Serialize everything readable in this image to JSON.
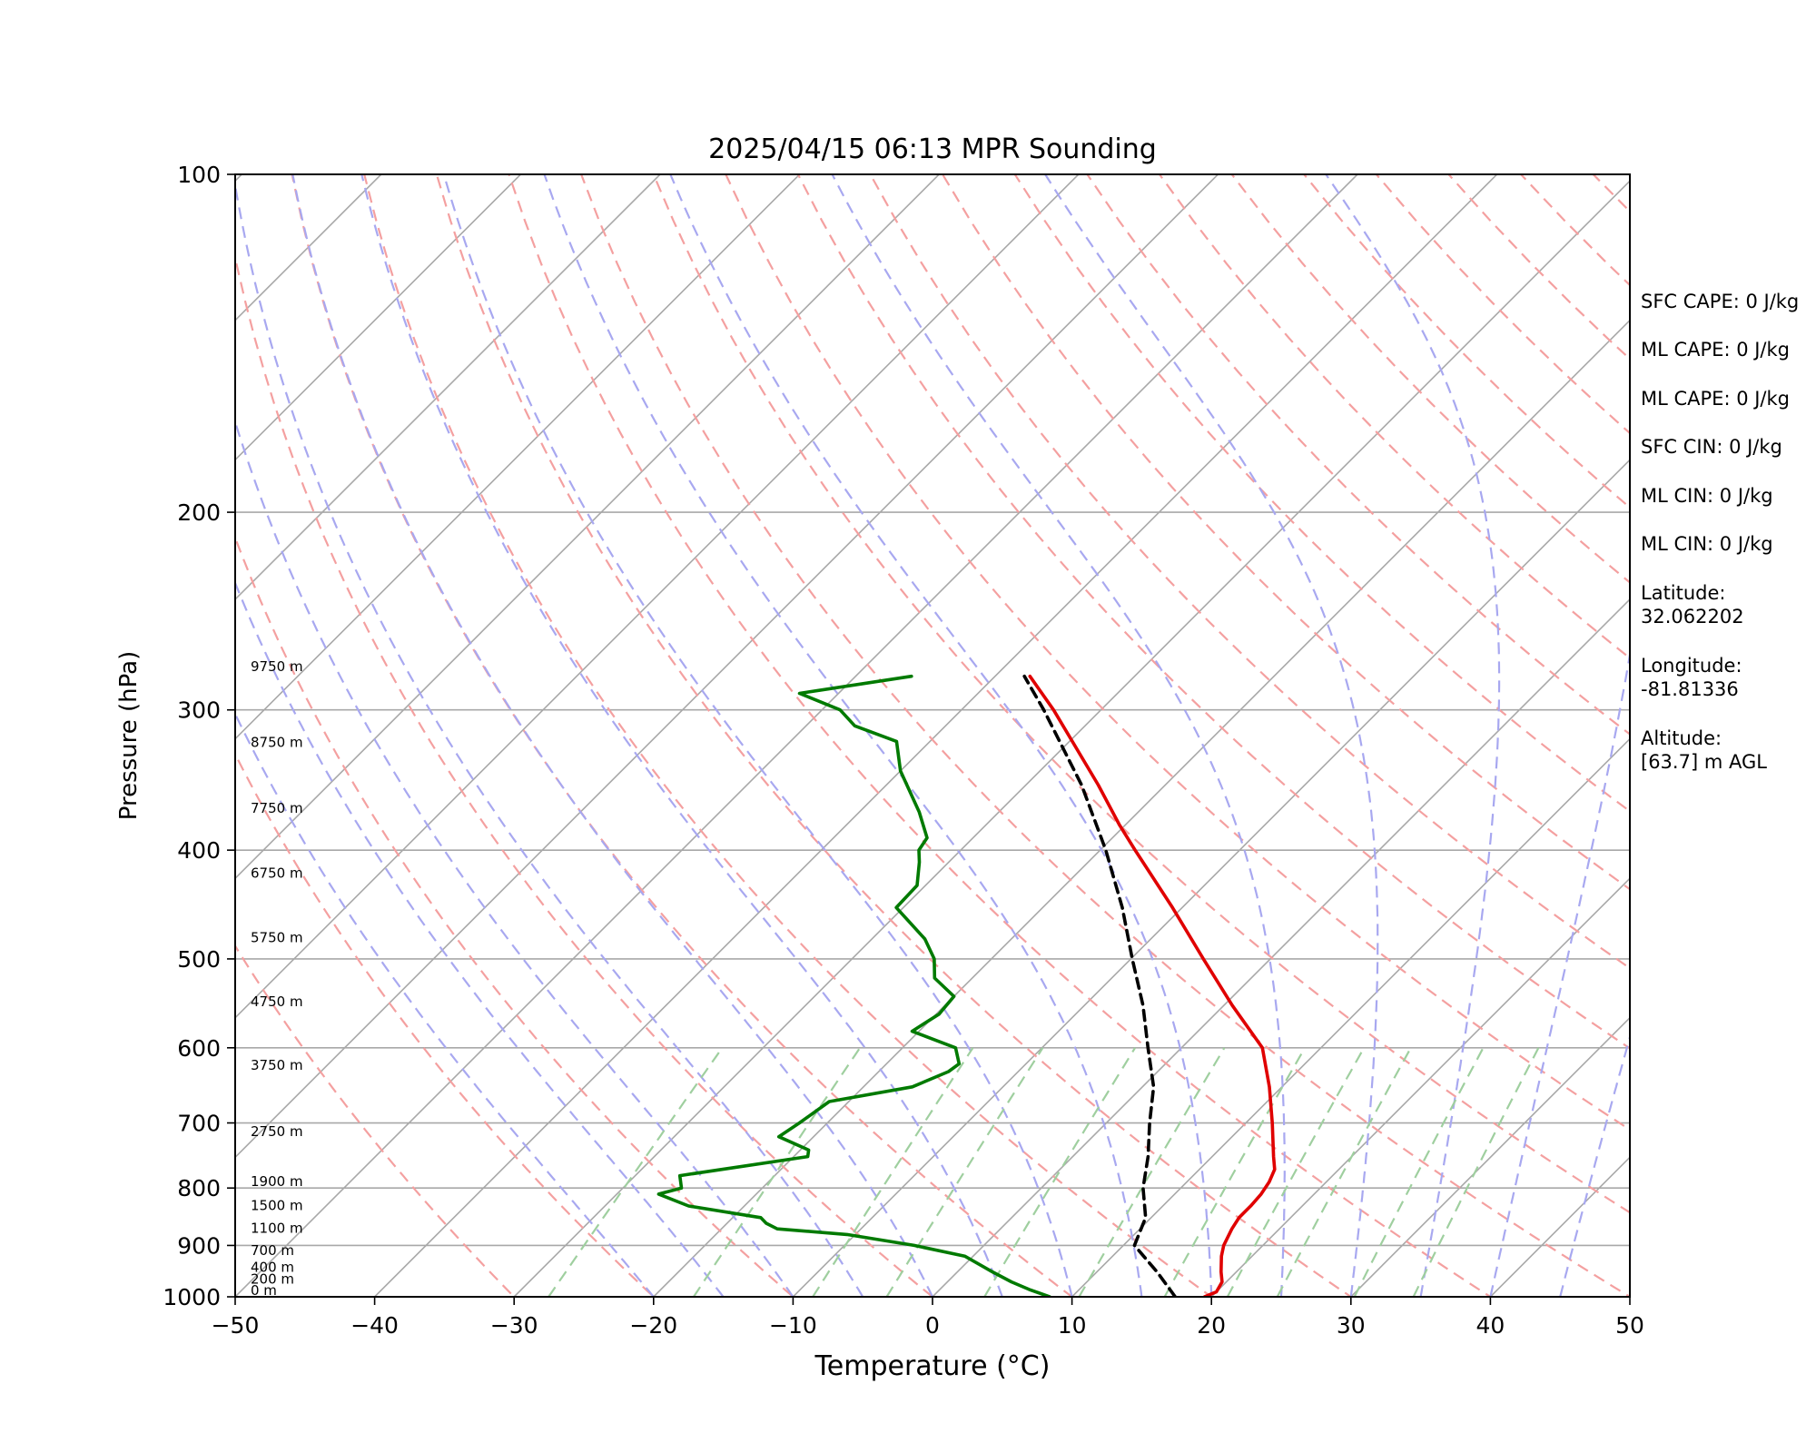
{
  "chart_data": {
    "type": "line",
    "title": "2025/04/15 06:13 MPR Sounding",
    "xlabel": "Temperature (°C)",
    "ylabel": "Pressure (hPa)",
    "xlim": [
      -50,
      50
    ],
    "ylim": [
      1000,
      100
    ],
    "y_scale": "log",
    "x_ticks": [
      -50,
      -40,
      -30,
      -20,
      -10,
      0,
      10,
      20,
      30,
      40,
      50
    ],
    "x_tick_labels": [
      "−50",
      "−40",
      "−30",
      "−20",
      "−10",
      "0",
      "10",
      "20",
      "30",
      "40",
      "50"
    ],
    "y_ticks": [
      100,
      200,
      300,
      400,
      500,
      600,
      700,
      800,
      900,
      1000
    ],
    "y_tick_labels": [
      "100",
      "200",
      "300",
      "400",
      "500",
      "600",
      "700",
      "800",
      "900",
      "1000"
    ],
    "skew": "skew-T (isotherms slanted 45°)",
    "grid": true,
    "height_labels": [
      {
        "p": 1000,
        "text": "0 m"
      },
      {
        "p": 977,
        "text": "200 m"
      },
      {
        "p": 954,
        "text": "400 m"
      },
      {
        "p": 921,
        "text": "700 m"
      },
      {
        "p": 880,
        "text": "1100 m"
      },
      {
        "p": 840,
        "text": "1500 m"
      },
      {
        "p": 800,
        "text": "1900 m"
      },
      {
        "p": 722,
        "text": "2750 m"
      },
      {
        "p": 630,
        "text": "3750 m"
      },
      {
        "p": 553,
        "text": "4750 m"
      },
      {
        "p": 485,
        "text": "5750 m"
      },
      {
        "p": 425,
        "text": "6750 m"
      },
      {
        "p": 372,
        "text": "7750 m"
      },
      {
        "p": 325,
        "text": "8750 m"
      },
      {
        "p": 278,
        "text": "9750 m"
      }
    ],
    "series": [
      {
        "color": "#e00000",
        "style": "solid",
        "points": [
          [
            1000,
            19.5
          ],
          [
            990,
            20.0
          ],
          [
            970,
            19.7
          ],
          [
            950,
            18.9
          ],
          [
            920,
            17.8
          ],
          [
            900,
            17.2
          ],
          [
            870,
            16.6
          ],
          [
            850,
            16.3
          ],
          [
            830,
            16.3
          ],
          [
            810,
            16.2
          ],
          [
            790,
            15.9
          ],
          [
            770,
            15.4
          ],
          [
            750,
            14.4
          ],
          [
            700,
            11.9
          ],
          [
            650,
            9.1
          ],
          [
            600,
            5.8
          ],
          [
            550,
            0.6
          ],
          [
            500,
            -4.8
          ],
          [
            450,
            -10.7
          ],
          [
            400,
            -17.5
          ],
          [
            380,
            -20.4
          ],
          [
            350,
            -24.8
          ],
          [
            300,
            -33.4
          ],
          [
            280,
            -37.5
          ]
        ]
      },
      {
        "color": "#007a00",
        "style": "solid",
        "points": [
          [
            1000,
            8.4
          ],
          [
            985,
            6.4
          ],
          [
            970,
            4.6
          ],
          [
            950,
            2.5
          ],
          [
            920,
            -0.6
          ],
          [
            900,
            -5.0
          ],
          [
            880,
            -10.6
          ],
          [
            870,
            -16.0
          ],
          [
            860,
            -17.2
          ],
          [
            850,
            -18.0
          ],
          [
            830,
            -24.0
          ],
          [
            810,
            -27.0
          ],
          [
            800,
            -25.8
          ],
          [
            780,
            -26.8
          ],
          [
            750,
            -19.0
          ],
          [
            740,
            -19.4
          ],
          [
            720,
            -22.5
          ],
          [
            700,
            -22.0
          ],
          [
            670,
            -21.4
          ],
          [
            650,
            -16.5
          ],
          [
            630,
            -15.0
          ],
          [
            620,
            -14.8
          ],
          [
            600,
            -16.2
          ],
          [
            580,
            -20.5
          ],
          [
            560,
            -19.8
          ],
          [
            540,
            -20.0
          ],
          [
            520,
            -22.7
          ],
          [
            500,
            -24.1
          ],
          [
            480,
            -26.2
          ],
          [
            450,
            -30.5
          ],
          [
            430,
            -30.6
          ],
          [
            410,
            -32.1
          ],
          [
            400,
            -33.0
          ],
          [
            390,
            -33.3
          ],
          [
            370,
            -35.7
          ],
          [
            340,
            -40.0
          ],
          [
            320,
            -42.4
          ],
          [
            310,
            -46.5
          ],
          [
            300,
            -48.7
          ],
          [
            290,
            -52.8
          ],
          [
            280,
            -46.0
          ]
        ]
      },
      {
        "color": "#000000",
        "style": "dashed",
        "points": [
          [
            1000,
            17.4
          ],
          [
            950,
            14.3
          ],
          [
            900,
            10.8
          ],
          [
            850,
            9.6
          ],
          [
            800,
            7.3
          ],
          [
            750,
            5.4
          ],
          [
            700,
            3.1
          ],
          [
            650,
            0.8
          ],
          [
            600,
            -2.4
          ],
          [
            550,
            -5.8
          ],
          [
            500,
            -9.9
          ],
          [
            450,
            -14.3
          ],
          [
            400,
            -19.6
          ],
          [
            350,
            -26.0
          ],
          [
            300,
            -34.1
          ],
          [
            280,
            -37.9
          ]
        ]
      }
    ]
  },
  "info_panel": {
    "sfc_cape": "SFC CAPE: 0 J/kg",
    "ml_cape_1": "ML CAPE: 0 J/kg",
    "ml_cape_2": "ML CAPE: 0 J/kg",
    "sfc_cin": "SFC CIN: 0 J/kg",
    "ml_cin_1": "ML CIN: 0 J/kg",
    "ml_cin_2": "ML CIN: 0 J/kg",
    "latitude_label": "Latitude:",
    "latitude_value": "32.062202",
    "longitude_label": "Longitude:",
    "longitude_value": "-81.81336",
    "altitude_label": "Altitude:",
    "altitude_value": "[63.7] m AGL"
  },
  "colors": {
    "dry_adiabats": "#f4a0a0",
    "moist_adiabats": "#a8a8f0",
    "mixing_ratio": "#9fcf9f",
    "isotherms": "#a8a8a8"
  }
}
